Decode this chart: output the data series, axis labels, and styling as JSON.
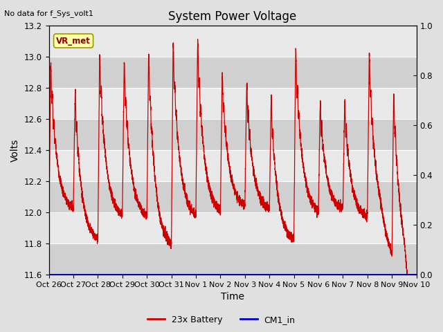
{
  "title": "System Power Voltage",
  "no_data_text": "No data for f_Sys_volt1",
  "ylabel_left": "Volts",
  "xlabel": "Time",
  "ylim_left": [
    11.6,
    13.2
  ],
  "ylim_right": [
    0.0,
    1.0
  ],
  "yticks_left": [
    11.6,
    11.8,
    12.0,
    12.2,
    12.4,
    12.6,
    12.8,
    13.0,
    13.2
  ],
  "yticks_right": [
    0.0,
    0.2,
    0.4,
    0.6,
    0.8,
    1.0
  ],
  "xtick_labels": [
    "Oct 26",
    "Oct 27",
    "Oct 28",
    "Oct 29",
    "Oct 30",
    "Oct 31",
    "Nov 1",
    "Nov 2",
    "Nov 3",
    "Nov 4",
    "Nov 5",
    "Nov 6",
    "Nov 7",
    "Nov 8",
    "Nov 9",
    "Nov 10"
  ],
  "vr_met_label": "VR_met",
  "legend_entries": [
    "23x Battery",
    "CM1_in"
  ],
  "battery_color": "#cc0000",
  "cm1_color": "#0000cc",
  "bg_color": "#e0e0e0",
  "plot_bg_light": "#e8e8e8",
  "plot_bg_dark": "#d0d0d0",
  "title_fontsize": 12,
  "axis_label_fontsize": 10,
  "tick_fontsize": 8.5
}
